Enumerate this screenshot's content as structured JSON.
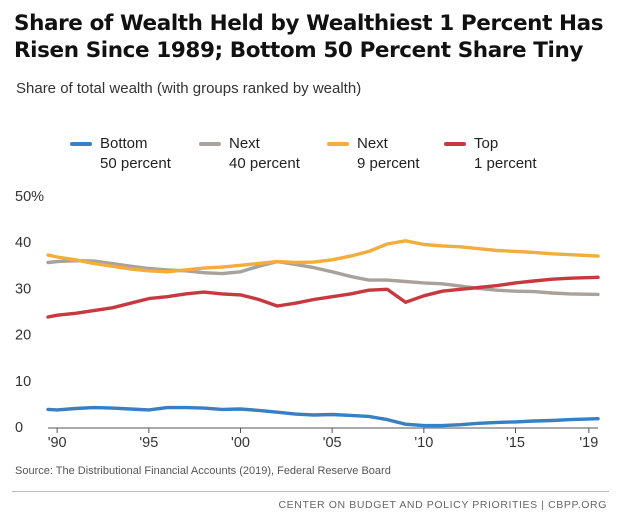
{
  "header": {
    "title_line1": "Share of Wealth Held by Wealthiest 1 Percent Has",
    "title_line2": "Risen Since 1989; Bottom 50 Percent Share Tiny",
    "subtitle": "Share of total wealth (with groups ranked by wealth)"
  },
  "footer": {
    "source": "Source: The Distributional Financial Accounts (2019), Federal Reserve Board",
    "org": "CENTER ON BUDGET AND POLICY PRIORITIES | CBPP.ORG"
  },
  "chart_data": {
    "type": "line",
    "title": "Share of Wealth Held by Wealthiest 1 Percent Has Risen Since 1989; Bottom 50 Percent Share Tiny",
    "ylabel": "Share of total wealth (with groups ranked by wealth)",
    "xlim": [
      1989.5,
      2019.5
    ],
    "ylim": [
      0,
      50
    ],
    "grid": false,
    "legend_position": "top",
    "y_ticks": [
      0,
      10,
      20,
      30,
      40,
      50
    ],
    "y_tick_labels": [
      "0",
      "10",
      "20",
      "30",
      "40",
      "50%"
    ],
    "x_ticks": [
      1990,
      1995,
      2000,
      2005,
      2010,
      2015,
      2019
    ],
    "x_tick_labels": [
      "'90",
      "'95",
      "'00",
      "'05",
      "'10",
      "'15",
      "'19"
    ],
    "series": [
      {
        "name": "Bottom 50 percent",
        "label_line1": "Bottom",
        "label_line2": "50 percent",
        "color": "#3a7fc1",
        "x": [
          1989.5,
          1990,
          1991,
          1992,
          1993,
          1994,
          1995,
          1996,
          1997,
          1998,
          1999,
          2000,
          2001,
          2002,
          2003,
          2004,
          2005,
          2006,
          2007,
          2008,
          2009,
          2010,
          2011,
          2012,
          2013,
          2014,
          2015,
          2016,
          2017,
          2018,
          2019.5
        ],
        "y": [
          3.8,
          3.7,
          4.0,
          4.2,
          4.1,
          3.9,
          3.7,
          4.2,
          4.2,
          4.1,
          3.8,
          3.9,
          3.6,
          3.2,
          2.8,
          2.6,
          2.7,
          2.5,
          2.3,
          1.6,
          0.6,
          0.3,
          0.3,
          0.5,
          0.8,
          1.0,
          1.1,
          1.3,
          1.4,
          1.6,
          1.8
        ]
      },
      {
        "name": "Next 40 percent",
        "label_line1": "Next",
        "label_line2": "40 percent",
        "color": "#a8a29a",
        "x": [
          1989.5,
          1990,
          1991,
          1992,
          1993,
          1994,
          1995,
          1996,
          1997,
          1998,
          1999,
          2000,
          2001,
          2002,
          2003,
          2004,
          2005,
          2006,
          2007,
          2008,
          2009,
          2010,
          2011,
          2012,
          2013,
          2014,
          2015,
          2016,
          2017,
          2018,
          2019.5
        ],
        "y": [
          35.6,
          35.8,
          36.0,
          35.9,
          35.4,
          34.8,
          34.3,
          34.0,
          33.8,
          33.4,
          33.2,
          33.6,
          34.8,
          35.8,
          35.2,
          34.5,
          33.6,
          32.6,
          31.8,
          31.8,
          31.5,
          31.2,
          31.0,
          30.5,
          30.0,
          29.6,
          29.4,
          29.3,
          29.0,
          28.8,
          28.7
        ]
      },
      {
        "name": "Next 9 percent",
        "label_line1": "Next",
        "label_line2": "9 percent",
        "color": "#f2ad3c",
        "x": [
          1989.5,
          1990,
          1991,
          1992,
          1993,
          1994,
          1995,
          1996,
          1997,
          1998,
          1999,
          2000,
          2001,
          2002,
          2003,
          2004,
          2005,
          2006,
          2007,
          2008,
          2009,
          2010,
          2011,
          2012,
          2013,
          2014,
          2015,
          2016,
          2017,
          2018,
          2019.5
        ],
        "y": [
          37.2,
          36.8,
          36.2,
          35.4,
          34.8,
          34.2,
          33.8,
          33.6,
          34.0,
          34.4,
          34.6,
          35.0,
          35.4,
          35.8,
          35.6,
          35.7,
          36.2,
          37.0,
          38.0,
          39.6,
          40.3,
          39.5,
          39.2,
          39.0,
          38.6,
          38.2,
          38.0,
          37.8,
          37.5,
          37.3,
          37.0
        ]
      },
      {
        "name": "Top 1 percent",
        "label_line1": "Top",
        "label_line2": "1 percent",
        "color": "#c8393f",
        "x": [
          1989.5,
          1990,
          1991,
          1992,
          1993,
          1994,
          1995,
          1996,
          1997,
          1998,
          1999,
          2000,
          2001,
          2002,
          2003,
          2004,
          2005,
          2006,
          2007,
          2008,
          2009,
          2010,
          2011,
          2012,
          2013,
          2014,
          2015,
          2016,
          2017,
          2018,
          2019.5
        ],
        "y": [
          23.8,
          24.2,
          24.6,
          25.2,
          25.8,
          26.8,
          27.8,
          28.2,
          28.8,
          29.2,
          28.8,
          28.6,
          27.6,
          26.2,
          26.8,
          27.6,
          28.2,
          28.8,
          29.6,
          29.8,
          27.0,
          28.4,
          29.4,
          29.8,
          30.2,
          30.6,
          31.2,
          31.6,
          32.0,
          32.2,
          32.4
        ]
      }
    ]
  }
}
